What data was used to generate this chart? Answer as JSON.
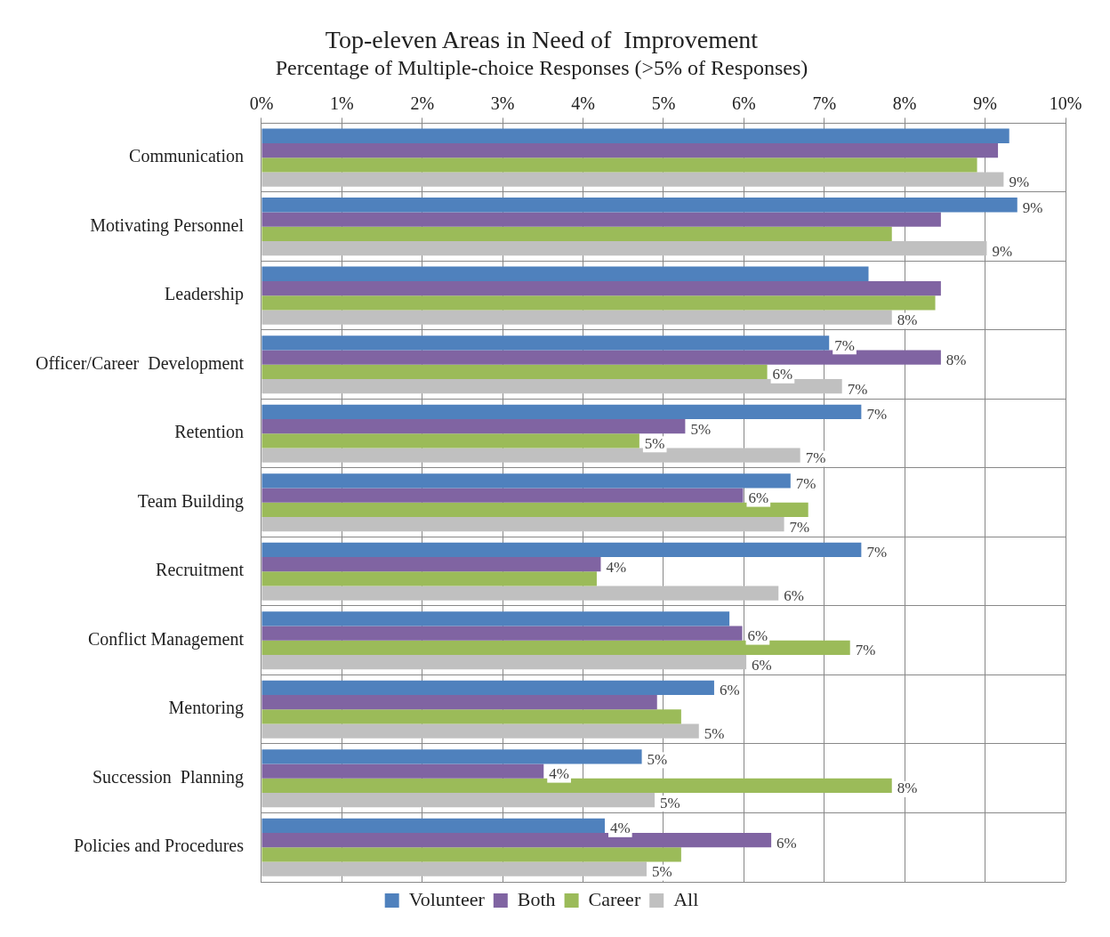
{
  "chart_data": {
    "type": "bar",
    "orientation": "horizontal",
    "title": "Top-eleven Areas in Need of  Improvement",
    "subtitle": "Percentage of Multiple-choice Responses (>5% of Responses)",
    "categories": [
      "Communication",
      "Motivating Personnel",
      "Leadership",
      "Officer/Career  Development",
      "Retention",
      "Team Building",
      "Recruitment",
      "Conflict Management",
      "Mentoring",
      "Succession  Planning",
      "Policies and Procedures"
    ],
    "series": [
      {
        "name": "Volunteer",
        "color": "#4f81bd",
        "values": [
          9.3,
          9.4,
          7.55,
          7.06,
          7.46,
          6.58,
          7.46,
          5.82,
          5.63,
          4.73,
          4.27
        ],
        "value_labels": [
          null,
          "9%",
          null,
          "7%",
          "7%",
          "7%",
          "7%",
          null,
          "6%",
          "5%",
          "4%"
        ]
      },
      {
        "name": "Both",
        "color": "#8064a2",
        "values": [
          9.16,
          8.45,
          8.45,
          8.45,
          5.27,
          5.99,
          4.22,
          5.98,
          4.92,
          3.51,
          6.34
        ],
        "value_labels": [
          null,
          null,
          null,
          "8%",
          "5%",
          "6%",
          "4%",
          "6%",
          null,
          "4%",
          "6%"
        ]
      },
      {
        "name": "Career",
        "color": "#9bbb59",
        "values": [
          8.9,
          7.84,
          8.38,
          6.29,
          4.7,
          6.8,
          4.17,
          7.32,
          5.22,
          7.84,
          5.22
        ],
        "value_labels": [
          null,
          null,
          null,
          "6%",
          "5%",
          null,
          null,
          "7%",
          null,
          "8%",
          null
        ]
      },
      {
        "name": "All",
        "color": "#c0c0c0",
        "values": [
          9.23,
          9.02,
          7.84,
          7.22,
          6.7,
          6.5,
          6.43,
          6.03,
          5.44,
          4.89,
          4.79
        ],
        "value_labels": [
          "9%",
          "9%",
          "8%",
          "7%",
          "7%",
          "7%",
          "6%",
          "6%",
          "5%",
          "5%",
          "5%"
        ]
      }
    ],
    "xlim": [
      0,
      10
    ],
    "xticks": [
      {
        "value": 0,
        "label": "0%"
      },
      {
        "value": 1,
        "label": "1%"
      },
      {
        "value": 2,
        "label": "2%"
      },
      {
        "value": 3,
        "label": "3%"
      },
      {
        "value": 4,
        "label": "4%"
      },
      {
        "value": 5,
        "label": "5%"
      },
      {
        "value": 6,
        "label": "6%"
      },
      {
        "value": 7,
        "label": "7%"
      },
      {
        "value": 8,
        "label": "8%"
      },
      {
        "value": 9,
        "label": "9%"
      },
      {
        "value": 10,
        "label": "10%"
      }
    ],
    "grid": true,
    "legend": "bottom"
  }
}
